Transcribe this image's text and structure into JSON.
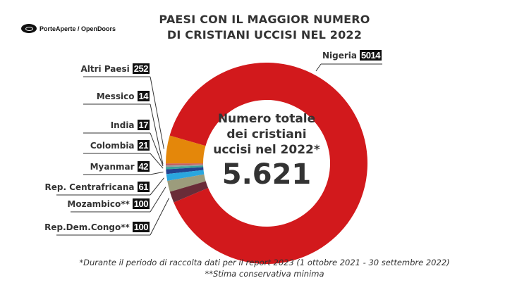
{
  "logo_text": "PorteAperte / OpenDoors",
  "chart_data": {
    "type": "pie",
    "variant": "donut",
    "title": [
      "PAESI CON IL MAGGIOR NUMERO",
      "DI CRISTIANI UCCISI NEL 2022"
    ],
    "categories": [
      "Nigeria",
      "Altri Paesi",
      "Messico",
      "India",
      "Colombia",
      "Myanmar",
      "Rep. Centrafricana",
      "Mozambico**",
      "Rep.Dem.Congo**"
    ],
    "values": [
      5014,
      252,
      14,
      17,
      21,
      42,
      61,
      100,
      100
    ],
    "colors": [
      "#d2191c",
      "#e4870a",
      "#c8555c",
      "#9a9a9a",
      "#3aa39a",
      "#24428f",
      "#2aa6df",
      "#9c9c7c",
      "#6a2c38"
    ],
    "center_text": [
      "Numero totale",
      "dei cristiani",
      "uccisi nel 2022*"
    ],
    "total_label": "5.621",
    "footnotes": [
      "*Durante il periodo di raccolta dati per il report 2023 (1 ottobre 2021 - 30 settembre 2022)",
      "**Stima conservativa minima"
    ]
  }
}
